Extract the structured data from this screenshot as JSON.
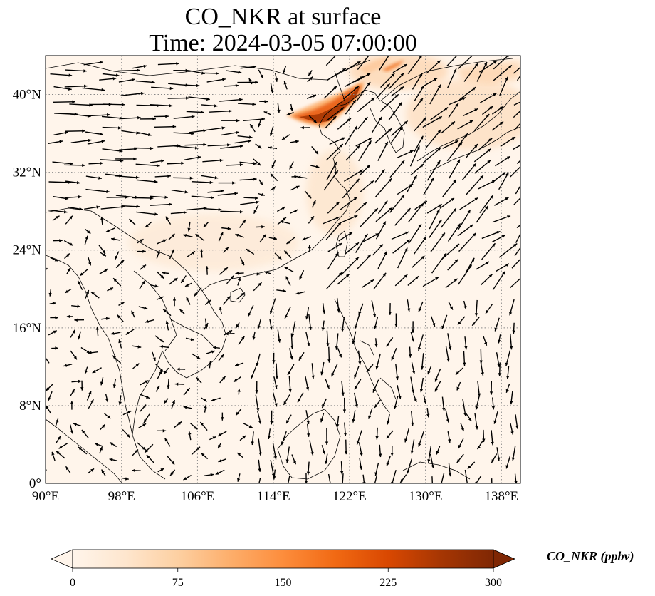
{
  "title": {
    "line1": "CO_NKR at surface",
    "line2": "Time: 2024-03-05 07:00:00"
  },
  "map": {
    "lon_range": [
      90,
      140
    ],
    "lat_range": [
      0,
      44
    ],
    "lon_ticks": [
      {
        "value": 90,
        "label": "90°E"
      },
      {
        "value": 98,
        "label": "98°E"
      },
      {
        "value": 106,
        "label": "106°E"
      },
      {
        "value": 114,
        "label": "114°E"
      },
      {
        "value": 122,
        "label": "122°E"
      },
      {
        "value": 130,
        "label": "130°E"
      },
      {
        "value": 138,
        "label": "138°E"
      }
    ],
    "lat_ticks": [
      {
        "value": 0,
        "label": "0°"
      },
      {
        "value": 8,
        "label": "8°N"
      },
      {
        "value": 16,
        "label": "16°N"
      },
      {
        "value": 24,
        "label": "24°N"
      },
      {
        "value": 32,
        "label": "32°N"
      },
      {
        "value": 40,
        "label": "40°N"
      }
    ],
    "gridlines": true,
    "background_color": "#fff5eb",
    "plume_colors": [
      "#fdd0a2",
      "#f16913",
      "#d94801",
      "#a63603",
      "#7f2704"
    ]
  },
  "colorbar": {
    "label": "CO_NKR (ppbv)",
    "min": 0,
    "max": 300,
    "extend": "both",
    "ticks": [
      {
        "value": 0,
        "label": "0"
      },
      {
        "value": 75,
        "label": "75"
      },
      {
        "value": 150,
        "label": "150"
      },
      {
        "value": 225,
        "label": "225"
      },
      {
        "value": 300,
        "label": "300"
      }
    ],
    "colormap": [
      "#fff5eb",
      "#fee6ce",
      "#fdd0a2",
      "#fdae6b",
      "#fd8d3c",
      "#f16913",
      "#d94801",
      "#a63603",
      "#7f2704"
    ]
  }
}
